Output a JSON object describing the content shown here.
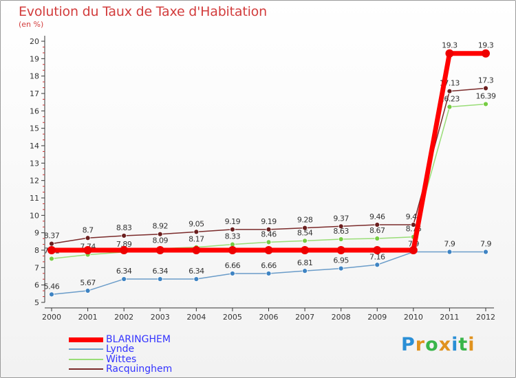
{
  "title": "Evolution du Taux de Taxe d'Habitation",
  "unit": "(en %)",
  "logo_text": "Proxiti",
  "logo_colors": [
    "#2a8fd6",
    "#e0921e",
    "#39b54a",
    "#e0921e",
    "#2a8fd6",
    "#39b54a",
    "#e0921e"
  ],
  "chart_data": {
    "type": "line",
    "x": [
      "2000",
      "2001",
      "2002",
      "2003",
      "2004",
      "2005",
      "2006",
      "2007",
      "2008",
      "2009",
      "2010",
      "2011",
      "2012"
    ],
    "y_ticks": [
      "5",
      "6",
      "7",
      "8",
      "9",
      "10",
      "11",
      "12",
      "13",
      "14",
      "15",
      "16",
      "17",
      "18",
      "19",
      "20"
    ],
    "ylim": [
      5,
      20
    ],
    "grid": false,
    "legend_position": "bottom-left",
    "series": [
      {
        "name": "Racquinghem",
        "color": "#7a2a2a",
        "marker": "#6b1f1f",
        "values": [
          8.37,
          8.7,
          8.83,
          8.92,
          9.05,
          9.19,
          9.19,
          9.28,
          9.37,
          9.46,
          9.46,
          17.13,
          17.3
        ],
        "labels": [
          "8.37",
          "8.7",
          "8.83",
          "8.92",
          "9.05",
          "9.19",
          "9.19",
          "9.28",
          "9.37",
          "9.46",
          "9.46",
          "17.13",
          "17.3"
        ]
      },
      {
        "name": "Wittes",
        "color": "#99dd77",
        "marker": "#77cc44",
        "values": [
          7.51,
          7.74,
          7.89,
          8.09,
          8.17,
          8.33,
          8.46,
          8.54,
          8.63,
          8.67,
          8.76,
          16.23,
          16.39
        ],
        "labels": [
          "7.51",
          "7.74",
          "7.89",
          "8.09",
          "8.17",
          "8.33",
          "8.46",
          "8.54",
          "8.63",
          "8.67",
          "8.76",
          "16.23",
          "16.39"
        ]
      },
      {
        "name": "Lynde",
        "color": "#6a9cc9",
        "marker": "#3f84c3",
        "values": [
          5.46,
          5.67,
          6.34,
          6.34,
          6.34,
          6.66,
          6.66,
          6.81,
          6.95,
          7.16,
          7.9,
          7.9,
          7.9
        ],
        "labels": [
          "5.46",
          "5.67",
          "6.34",
          "6.34",
          "6.34",
          "6.66",
          "6.66",
          "6.81",
          "6.95",
          "7.16",
          "7.9",
          "7.9",
          "7.9"
        ]
      },
      {
        "name": "BLARINGHEM",
        "color": "#ff0000",
        "marker": "#ee0000",
        "values": [
          8,
          8,
          8,
          8,
          8,
          8,
          8,
          8,
          8,
          8,
          8,
          19.3,
          19.3
        ],
        "labels": [
          "",
          "",
          "",
          "",
          "",
          "",
          "",
          "",
          "",
          "",
          "",
          "19.3",
          "19.3"
        ]
      }
    ]
  },
  "legend": [
    {
      "name": "BLARINGHEM",
      "color": "#ff0000"
    },
    {
      "name": "Lynde",
      "color": "#6a9cc9"
    },
    {
      "name": "Wittes",
      "color": "#99dd77"
    },
    {
      "name": "Racquinghem",
      "color": "#7a2a2a"
    }
  ]
}
